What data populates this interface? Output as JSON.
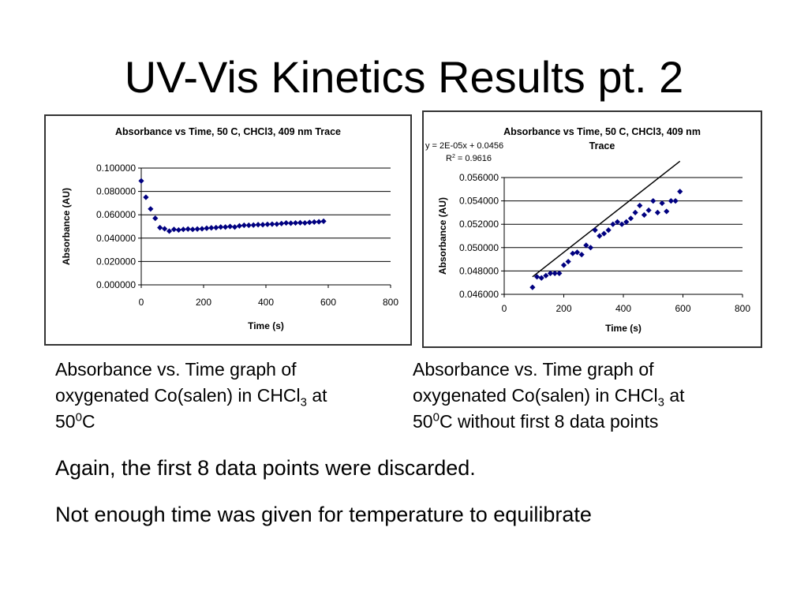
{
  "slide": {
    "title": "UV-Vis Kinetics Results pt. 2"
  },
  "captions": {
    "left": {
      "line1": "Absorbance vs. Time graph of",
      "line2_pre": "oxygenated Co(salen) in CHCl",
      "line2_sub": "3",
      "line2_post": " at",
      "line3_pre": "50",
      "line3_sup": "0",
      "line3_post": "C"
    },
    "right": {
      "line1": "Absorbance vs. Time graph of",
      "line2_pre": "oxygenated Co(salen) in CHCl",
      "line2_sub": "3",
      "line2_post": " at",
      "line3_pre": "50",
      "line3_sup": "0",
      "line3_post": "C without first 8 data points"
    }
  },
  "body": {
    "line1": "Again, the first 8 data points were discarded.",
    "line2": "Not enough time was given for temperature to equilibrate"
  },
  "chart_data": [
    {
      "type": "scatter",
      "title": "Absorbance vs Time, 50 C, CHCl3, 409 nm Trace",
      "xlabel": "Time (s)",
      "ylabel": "Absorbance (AU)",
      "xlim": [
        0,
        800
      ],
      "ylim": [
        0,
        0.1
      ],
      "x_ticks": [
        "0",
        "200",
        "400",
        "600",
        "800"
      ],
      "y_ticks": [
        "0.000000",
        "0.020000",
        "0.040000",
        "0.060000",
        "0.080000",
        "0.100000"
      ],
      "grid": "horizontal",
      "marker_color": "#000080",
      "x": [
        0,
        15,
        30,
        45,
        60,
        75,
        90,
        105,
        120,
        135,
        150,
        165,
        180,
        195,
        210,
        225,
        240,
        255,
        270,
        285,
        300,
        315,
        330,
        345,
        360,
        375,
        390,
        405,
        420,
        435,
        450,
        465,
        480,
        495,
        510,
        525,
        540,
        555,
        570,
        585
      ],
      "y": [
        0.089,
        0.075,
        0.065,
        0.057,
        0.049,
        0.048,
        0.046,
        0.0475,
        0.047,
        0.0475,
        0.0478,
        0.0475,
        0.0478,
        0.048,
        0.0485,
        0.0488,
        0.049,
        0.0495,
        0.0495,
        0.05,
        0.0495,
        0.0505,
        0.051,
        0.051,
        0.0512,
        0.0515,
        0.0515,
        0.0518,
        0.052,
        0.052,
        0.0525,
        0.053,
        0.0528,
        0.053,
        0.0532,
        0.053,
        0.0535,
        0.0538,
        0.054,
        0.0545
      ]
    },
    {
      "type": "scatter",
      "title": "Absorbance vs Time, 50 C, CHCl3, 409 nm Trace",
      "title_line1": "Absorbance vs Time, 50 C, CHCl3, 409 nm",
      "title_line2": "Trace",
      "xlabel": "Time (s)",
      "ylabel": "Absorbance (AU)",
      "xlim": [
        0,
        800
      ],
      "ylim": [
        0.046,
        0.056
      ],
      "x_ticks": [
        "0",
        "200",
        "400",
        "600",
        "800"
      ],
      "y_ticks": [
        "0.046000",
        "0.048000",
        "0.050000",
        "0.052000",
        "0.054000",
        "0.056000"
      ],
      "grid": "horizontal",
      "marker_color": "#000080",
      "trendline": {
        "equation": "y = 2E-05x + 0.0456",
        "r2_pre": "R",
        "r2_sup": "2",
        "r2_post": " = 0.9616",
        "slope": 2e-05,
        "intercept": 0.0456,
        "color": "#000000"
      },
      "x": [
        95,
        110,
        125,
        140,
        155,
        170,
        185,
        200,
        215,
        230,
        245,
        260,
        275,
        290,
        305,
        320,
        335,
        350,
        365,
        380,
        395,
        410,
        425,
        440,
        455,
        470,
        485,
        500,
        515,
        530,
        545,
        560,
        575,
        590
      ],
      "y": [
        0.0466,
        0.0475,
        0.0474,
        0.0476,
        0.0478,
        0.0478,
        0.0478,
        0.0485,
        0.0488,
        0.0495,
        0.0496,
        0.0494,
        0.0502,
        0.05,
        0.0515,
        0.051,
        0.0512,
        0.0515,
        0.052,
        0.0522,
        0.052,
        0.0522,
        0.0525,
        0.053,
        0.0536,
        0.0528,
        0.0532,
        0.054,
        0.053,
        0.0538,
        0.0531,
        0.054,
        0.054,
        0.0548
      ]
    }
  ]
}
